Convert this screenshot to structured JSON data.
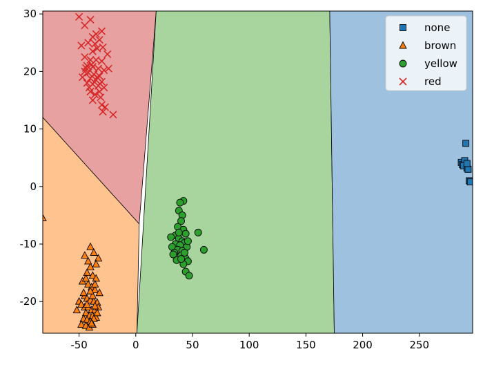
{
  "chart_data": {
    "type": "scatter",
    "title": "",
    "xlabel": "",
    "ylabel": "",
    "xlim": [
      -82,
      297
    ],
    "ylim": [
      -25.5,
      30.5
    ],
    "xticks": [
      -50,
      0,
      50,
      100,
      150,
      200,
      250
    ],
    "yticks": [
      -20,
      -10,
      0,
      10,
      20,
      30
    ],
    "legend": "top-right",
    "decision_regions": [
      {
        "class": "red",
        "color": "#e8a1a1",
        "polygon": [
          [
            -82,
            30.5
          ],
          [
            18,
            30.5
          ],
          [
            3,
            -6.5
          ],
          [
            -82,
            12
          ]
        ]
      },
      {
        "class": "brown",
        "color": "#fec38f",
        "polygon": [
          [
            -82,
            12
          ],
          [
            3,
            -6.5
          ],
          [
            1,
            -25.5
          ],
          [
            -82,
            -25.5
          ]
        ]
      },
      {
        "class": "yellow",
        "color": "#a8d49d",
        "polygon": [
          [
            18,
            30.5
          ],
          [
            171,
            30.5
          ],
          [
            175,
            -25.5
          ],
          [
            1,
            -25.5
          ]
        ]
      },
      {
        "class": "none",
        "color": "#9dc1de",
        "polygon": [
          [
            171,
            30.5
          ],
          [
            297,
            30.5
          ],
          [
            297,
            -25.5
          ],
          [
            175,
            -25.5
          ]
        ]
      }
    ],
    "series": [
      {
        "name": "none",
        "marker": "square",
        "color": "#1f77b4",
        "points": [
          [
            291,
            7.5
          ],
          [
            287,
            4.2
          ],
          [
            288,
            3.8
          ],
          [
            290,
            4.5
          ],
          [
            289,
            3.6
          ],
          [
            292,
            3.2
          ],
          [
            293,
            3.0
          ],
          [
            294,
            1.0
          ],
          [
            295,
            0.8
          ],
          [
            292,
            4.0
          ]
        ]
      },
      {
        "name": "brown",
        "marker": "triangle",
        "color": "#ff7f0e",
        "points": [
          [
            -82,
            -5.5
          ],
          [
            -40,
            -10.5
          ],
          [
            -37,
            -11.5
          ],
          [
            -45,
            -12
          ],
          [
            -33,
            -12.5
          ],
          [
            -35,
            -13.5
          ],
          [
            -40,
            -14
          ],
          [
            -43,
            -15
          ],
          [
            -38,
            -15.5
          ],
          [
            -35,
            -16
          ],
          [
            -47,
            -16.5
          ],
          [
            -42,
            -17
          ],
          [
            -39,
            -17.5
          ],
          [
            -36,
            -18
          ],
          [
            -32,
            -18.5
          ],
          [
            -45,
            -19
          ],
          [
            -43,
            -19.5
          ],
          [
            -40,
            -19.8
          ],
          [
            -37,
            -20
          ],
          [
            -34,
            -20.2
          ],
          [
            -50,
            -20
          ],
          [
            -48,
            -20.5
          ],
          [
            -45,
            -21
          ],
          [
            -42,
            -21
          ],
          [
            -39,
            -21.5
          ],
          [
            -36,
            -21.5
          ],
          [
            -33,
            -21
          ],
          [
            -44,
            -22
          ],
          [
            -41,
            -22.5
          ],
          [
            -38,
            -22.5
          ],
          [
            -35,
            -22.8
          ],
          [
            -46,
            -23
          ],
          [
            -43,
            -23.2
          ],
          [
            -40,
            -23.5
          ],
          [
            -37,
            -23
          ],
          [
            -48,
            -24
          ],
          [
            -44,
            -24.2
          ],
          [
            -41,
            -24.5
          ],
          [
            -38,
            -24
          ],
          [
            -36,
            -17
          ],
          [
            -42,
            -13
          ],
          [
            -46,
            -18.5
          ],
          [
            -38,
            -19
          ],
          [
            -44,
            -16
          ],
          [
            -40,
            -18.2
          ],
          [
            -34,
            -22
          ],
          [
            -52,
            -21.5
          ],
          [
            -39,
            -23.8
          ],
          [
            -43,
            -20.5
          ],
          [
            -36,
            -20.8
          ]
        ]
      },
      {
        "name": "yellow",
        "marker": "circle",
        "color": "#2ca02c",
        "points": [
          [
            42,
            -2.5
          ],
          [
            39,
            -2.8
          ],
          [
            38,
            -4.2
          ],
          [
            41,
            -5
          ],
          [
            40,
            -6
          ],
          [
            37,
            -7
          ],
          [
            42,
            -7.5
          ],
          [
            44,
            -8.2
          ],
          [
            35,
            -8.5
          ],
          [
            31,
            -8.8
          ],
          [
            38,
            -9
          ],
          [
            41,
            -9.5
          ],
          [
            43,
            -9.8
          ],
          [
            35,
            -10
          ],
          [
            39,
            -10.2
          ],
          [
            45,
            -10.5
          ],
          [
            32,
            -10.5
          ],
          [
            37,
            -11
          ],
          [
            41,
            -11.2
          ],
          [
            34,
            -11.5
          ],
          [
            40,
            -12
          ],
          [
            44,
            -12.5
          ],
          [
            36,
            -12.8
          ],
          [
            46,
            -13
          ],
          [
            42,
            -13.5
          ],
          [
            44,
            -14.8
          ],
          [
            47,
            -15.5
          ],
          [
            55,
            -8
          ],
          [
            60,
            -11
          ],
          [
            33,
            -11.8
          ],
          [
            38,
            -8
          ],
          [
            43,
            -11.5
          ],
          [
            46,
            -9.5
          ],
          [
            40,
            -12.6
          ]
        ]
      },
      {
        "name": "red",
        "marker": "x",
        "color": "#d62728",
        "points": [
          [
            -50,
            29.5
          ],
          [
            -40,
            29
          ],
          [
            -45,
            28
          ],
          [
            -30,
            27
          ],
          [
            -35,
            26.5
          ],
          [
            -38,
            26
          ],
          [
            -32,
            25.5
          ],
          [
            -42,
            25
          ],
          [
            -48,
            24.5
          ],
          [
            -34,
            24
          ],
          [
            -29,
            24.2
          ],
          [
            -38,
            23.5
          ],
          [
            -45,
            22.5
          ],
          [
            -40,
            22
          ],
          [
            -35,
            22
          ],
          [
            -30,
            21.8
          ],
          [
            -43,
            21
          ],
          [
            -38,
            20.8
          ],
          [
            -33,
            20.5
          ],
          [
            -28,
            20.2
          ],
          [
            -45,
            20
          ],
          [
            -42,
            19.8
          ],
          [
            -37,
            19.5
          ],
          [
            -32,
            19.2
          ],
          [
            -47,
            19
          ],
          [
            -40,
            18.8
          ],
          [
            -35,
            18.5
          ],
          [
            -30,
            18.2
          ],
          [
            -43,
            18
          ],
          [
            -38,
            17.8
          ],
          [
            -33,
            17.5
          ],
          [
            -28,
            17.2
          ],
          [
            -40,
            16.5
          ],
          [
            -36,
            16
          ],
          [
            -31,
            15.5
          ],
          [
            -38,
            15
          ],
          [
            -30,
            14.2
          ],
          [
            -27,
            13.8
          ],
          [
            -29,
            13
          ],
          [
            -20,
            12.5
          ],
          [
            -25,
            23
          ],
          [
            -24,
            20.5
          ],
          [
            -36,
            24.8
          ],
          [
            -39,
            21.2
          ],
          [
            -34,
            19
          ],
          [
            -41,
            17.2
          ],
          [
            -32,
            16.5
          ],
          [
            -44,
            20.6
          ]
        ]
      }
    ]
  }
}
